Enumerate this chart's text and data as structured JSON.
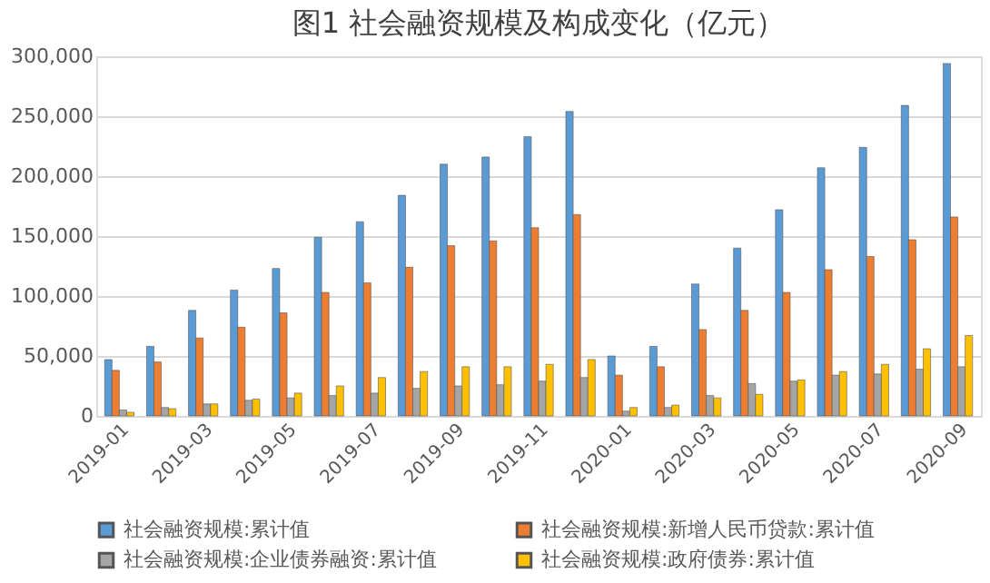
{
  "chart_data": {
    "type": "bar",
    "title": "图1  社会融资规模及构成变化（亿元）",
    "categories": [
      "2019-01",
      null,
      "2019-03",
      null,
      "2019-05",
      null,
      "2019-07",
      null,
      "2019-09",
      null,
      "2019-11",
      null,
      "2020-01",
      null,
      "2020-03",
      null,
      "2020-05",
      null,
      "2020-07",
      null,
      "2020-09"
    ],
    "series": [
      {
        "name": "社会融资规模:累计值",
        "color": "#5b9bd5",
        "values": [
          47000,
          58000,
          88000,
          105000,
          123000,
          149000,
          162000,
          184000,
          210000,
          216000,
          233000,
          254000,
          50000,
          58000,
          110000,
          140000,
          172000,
          207000,
          224000,
          259000,
          294000
        ]
      },
      {
        "name": "社会融资规模:新增人民币贷款:累计值",
        "color": "#ed7d31",
        "values": [
          38000,
          45000,
          65000,
          74000,
          86000,
          103000,
          111000,
          124000,
          142000,
          146000,
          157000,
          168000,
          34000,
          41000,
          72000,
          88000,
          103000,
          122000,
          133000,
          147000,
          166000
        ]
      },
      {
        "name": "社会融资规模:企业债券融资:累计值",
        "color": "#a5a5a5",
        "values": [
          5000,
          7000,
          10000,
          13000,
          15000,
          17000,
          19000,
          23000,
          25000,
          26000,
          29000,
          32000,
          4000,
          7000,
          17000,
          27000,
          29000,
          34000,
          35000,
          39000,
          41000
        ]
      },
      {
        "name": "社会融资规模:政府债券:累计值",
        "color": "#ffc000",
        "values": [
          3000,
          6000,
          10000,
          14000,
          19000,
          25000,
          32000,
          37000,
          41000,
          41000,
          43000,
          47000,
          7000,
          9000,
          15000,
          18000,
          30000,
          37000,
          43000,
          56000,
          67000
        ]
      }
    ],
    "ylim": [
      0,
      300000
    ],
    "yticks": [
      {
        "value": 0,
        "label": "0"
      },
      {
        "value": 50000,
        "label": "50,000"
      },
      {
        "value": 100000,
        "label": "100,000"
      },
      {
        "value": 150000,
        "label": "150,000"
      },
      {
        "value": 200000,
        "label": "200,000"
      },
      {
        "value": 250000,
        "label": "250,000"
      },
      {
        "value": 300000,
        "label": "300,000"
      }
    ],
    "grid": "y",
    "legend": "bottom"
  }
}
